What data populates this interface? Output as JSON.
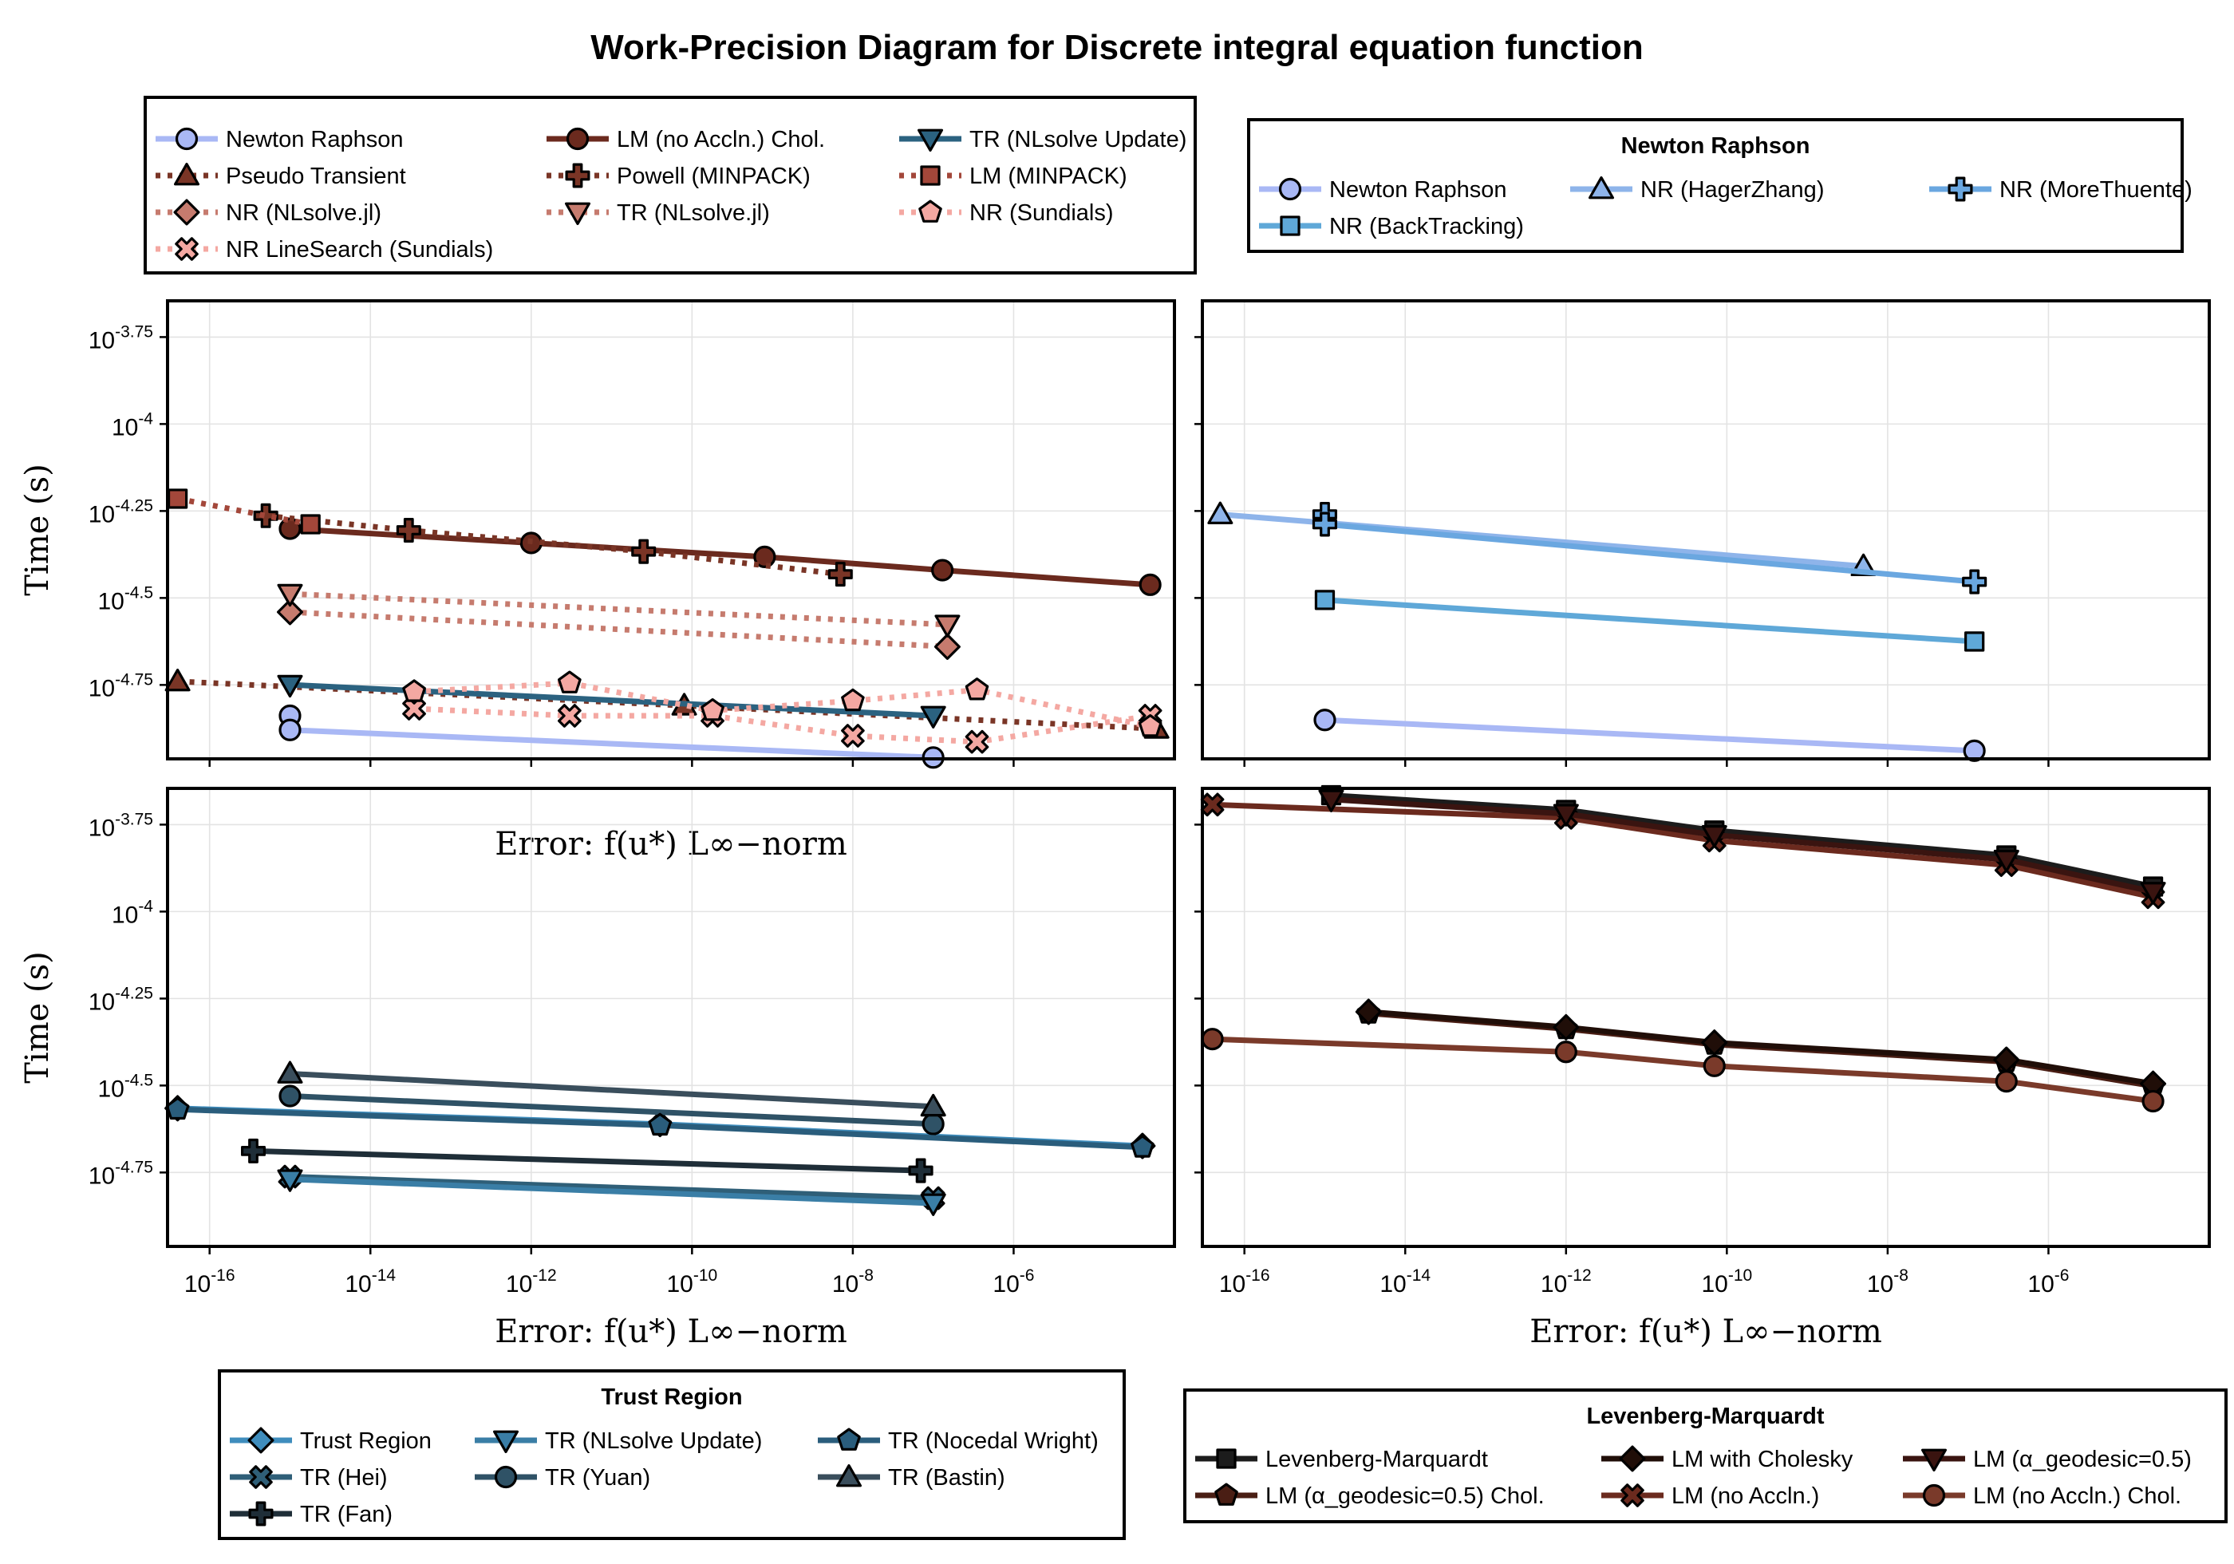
{
  "title": "Work-Precision Diagram for Discrete integral equation function",
  "chart_data": [
    {
      "type": "line",
      "panel": "top-left",
      "xscale": "log10",
      "yscale": "log10",
      "xlabel": "Error: f(u*) L∞−norm",
      "ylabel": "Time (s)",
      "xlim": [
        3e-17,
        0.0001
      ],
      "ylim": [
        1.09e-05,
        0.000226
      ],
      "x_ticks": [
        1e-16,
        1e-14,
        1e-12,
        1e-10,
        1e-08,
        1e-06
      ],
      "x_tick_labels": [
        "10^-16",
        "10^-14",
        "10^-12",
        "10^-10",
        "10^-8",
        "10^-6"
      ],
      "y_ticks": [
        0.0001778,
        0.0001,
        5.623e-05,
        3.162e-05,
        1.778e-05
      ],
      "y_tick_labels": [
        "10^-3.75",
        "10^-4",
        "10^-4.25",
        "10^-4.5",
        "10^-4.75"
      ],
      "show_x_tick_labels": false,
      "show_y_tick_labels": true,
      "grid": true,
      "series": [
        {
          "name": "Newton Raphson",
          "color": "#a9b8f5",
          "dash": "solid",
          "marker": "circle",
          "x": [
            1e-15,
            1e-15,
            1e-07
          ],
          "y": [
            1.45e-05,
            1.32e-05,
            1.1e-05
          ]
        },
        {
          "name": "Pseudo Transient",
          "color": "#7a3526",
          "dash": "dot",
          "marker": "triangle-up",
          "x": [
            4e-17,
            8e-11,
            6e-05
          ],
          "y": [
            1.82e-05,
            1.55e-05,
            1.33e-05
          ]
        },
        {
          "name": "NR (NLsolve.jl)",
          "color": "#c67b6e",
          "dash": "dot",
          "marker": "diamond",
          "x": [
            1e-15,
            1.5e-07
          ],
          "y": [
            2.88e-05,
            2.29e-05
          ]
        },
        {
          "name": "NR LineSearch (Sundials)",
          "color": "#f4a8a2",
          "dash": "dot",
          "marker": "cross-x",
          "x": [
            3.5e-14,
            3e-12,
            1.8e-10,
            1e-08,
            3.5e-07,
            5e-05
          ],
          "y": [
            1.52e-05,
            1.45e-05,
            1.45e-05,
            1.27e-05,
            1.22e-05,
            1.45e-05
          ]
        },
        {
          "name": "LM (no Accln.) Chol.",
          "color": "#6b2a1e",
          "dash": "solid",
          "marker": "circle",
          "x": [
            1e-15,
            1e-12,
            8e-10,
            1.3e-07,
            5e-05
          ],
          "y": [
            5e-05,
            4.55e-05,
            4.15e-05,
            3.8e-05,
            3.45e-05
          ]
        },
        {
          "name": "Powell (MINPACK)",
          "color": "#7a3526",
          "dash": "dot",
          "marker": "plus",
          "x": [
            5e-16,
            3e-14,
            2.5e-11,
            7e-09
          ],
          "y": [
            5.45e-05,
            4.95e-05,
            4.3e-05,
            3.7e-05
          ]
        },
        {
          "name": "TR (NLsolve.jl)",
          "color": "#c67b6e",
          "dash": "dot",
          "marker": "triangle-down",
          "x": [
            1e-15,
            1.5e-07
          ],
          "y": [
            3.25e-05,
            2.65e-05
          ]
        },
        {
          "name": "TR (NLsolve Update)",
          "color": "#2b6280",
          "dash": "solid",
          "marker": "triangle-down",
          "x": [
            1e-15,
            1e-07
          ],
          "y": [
            1.78e-05,
            1.45e-05
          ]
        },
        {
          "name": "LM (MINPACK)",
          "color": "#a3473a",
          "dash": "dot",
          "marker": "square",
          "x": [
            4e-17,
            1.8e-15
          ],
          "y": [
            6.1e-05,
            5.15e-05
          ]
        },
        {
          "name": "NR (Sundials)",
          "color": "#f4a8a2",
          "dash": "dot",
          "marker": "pentagon",
          "x": [
            3.5e-14,
            3e-12,
            1.8e-10,
            1e-08,
            3.5e-07,
            5e-05
          ],
          "y": [
            1.7e-05,
            1.8e-05,
            1.5e-05,
            1.6e-05,
            1.72e-05,
            1.35e-05
          ]
        }
      ]
    },
    {
      "type": "line",
      "panel": "top-right",
      "xscale": "log10",
      "yscale": "log10",
      "xlim": [
        3e-17,
        0.0001
      ],
      "ylim": [
        1.09e-05,
        0.000226
      ],
      "x_ticks": [
        1e-16,
        1e-14,
        1e-12,
        1e-10,
        1e-08,
        1e-06
      ],
      "x_tick_labels": [
        "10^-16",
        "10^-14",
        "10^-12",
        "10^-10",
        "10^-8",
        "10^-6"
      ],
      "y_ticks": [
        0.0001778,
        0.0001,
        5.623e-05,
        3.162e-05,
        1.778e-05
      ],
      "y_tick_labels": [
        "10^-3.75",
        "10^-4",
        "10^-4.25",
        "10^-4.5",
        "10^-4.75"
      ],
      "show_x_tick_labels": false,
      "show_y_tick_labels": false,
      "grid": true,
      "series": [
        {
          "name": "Newton Raphson",
          "color": "#a9b8f5",
          "dash": "solid",
          "marker": "circle",
          "x": [
            1e-15,
            1.2e-07
          ],
          "y": [
            1.41e-05,
            1.15e-05
          ]
        },
        {
          "name": "NR (HagerZhang)",
          "color": "#8eb4ea",
          "dash": "solid",
          "marker": "triangle-up",
          "x": [
            5e-17,
            5e-09
          ],
          "y": [
            5.5e-05,
            3.9e-05
          ]
        },
        {
          "name": "NR (MoreThuente)",
          "color": "#6aa7e0",
          "dash": "solid",
          "marker": "plus",
          "x": [
            1e-15,
            1e-15,
            1.2e-07
          ],
          "y": [
            5.5e-05,
            5.15e-05,
            3.52e-05
          ]
        },
        {
          "name": "NR (BackTracking)",
          "color": "#5fa8d8",
          "dash": "solid",
          "marker": "square",
          "x": [
            1e-15,
            1.2e-07
          ],
          "y": [
            3.12e-05,
            2.37e-05
          ]
        }
      ]
    },
    {
      "type": "line",
      "panel": "bottom-left",
      "xscale": "log10",
      "yscale": "log10",
      "xlabel": "Error: f(u*) L∞−norm",
      "ylabel": "Time (s)",
      "xlim": [
        3e-17,
        0.0001
      ],
      "ylim": [
        1.09e-05,
        0.000226
      ],
      "x_ticks": [
        1e-16,
        1e-14,
        1e-12,
        1e-10,
        1e-08,
        1e-06
      ],
      "x_tick_labels": [
        "10^-16",
        "10^-14",
        "10^-12",
        "10^-10",
        "10^-8",
        "10^-6"
      ],
      "y_ticks": [
        0.0001778,
        0.0001,
        5.623e-05,
        3.162e-05,
        1.778e-05
      ],
      "y_tick_labels": [
        "10^-3.75",
        "10^-4",
        "10^-4.25",
        "10^-4.5",
        "10^-4.75"
      ],
      "show_x_tick_labels": true,
      "show_y_tick_labels": true,
      "grid": true,
      "series": [
        {
          "name": "Trust Region",
          "color": "#3f8dbd",
          "dash": "solid",
          "marker": "diamond",
          "x": [
            4e-17,
            4e-11,
            4e-05
          ],
          "y": [
            2.72e-05,
            2.45e-05,
            2.12e-05
          ]
        },
        {
          "name": "TR (Hei)",
          "color": "#2f5f78",
          "dash": "solid",
          "marker": "cross-x",
          "x": [
            1e-15,
            1e-07
          ],
          "y": [
            1.73e-05,
            1.5e-05
          ]
        },
        {
          "name": "TR (Fan)",
          "color": "#1f2e38",
          "dash": "solid",
          "marker": "plus",
          "x": [
            3.5e-16,
            7e-08
          ],
          "y": [
            2.05e-05,
            1.8e-05
          ]
        },
        {
          "name": "TR (NLsolve Update)",
          "color": "#3a7ea6",
          "dash": "solid",
          "marker": "triangle-down",
          "x": [
            1e-15,
            1e-07
          ],
          "y": [
            1.7e-05,
            1.45e-05
          ]
        },
        {
          "name": "TR (Yuan)",
          "color": "#2f5266",
          "dash": "solid",
          "marker": "circle",
          "x": [
            1e-15,
            1e-07
          ],
          "y": [
            2.95e-05,
            2.45e-05
          ]
        },
        {
          "name": "TR (Nocedal Wright)",
          "color": "#2a5d7c",
          "dash": "solid",
          "marker": "pentagon",
          "x": [
            4e-17,
            4e-11,
            4e-05
          ],
          "y": [
            2.7e-05,
            2.43e-05,
            2.1e-05
          ]
        },
        {
          "name": "TR (Bastin)",
          "color": "#3a4e5c",
          "dash": "solid",
          "marker": "triangle-up",
          "x": [
            1e-15,
            1e-07
          ],
          "y": [
            3.42e-05,
            2.75e-05
          ]
        }
      ]
    },
    {
      "type": "line",
      "panel": "bottom-right",
      "xscale": "log10",
      "yscale": "log10",
      "xlabel": "Error: f(u*) L∞−norm",
      "xlim": [
        3e-17,
        0.0001
      ],
      "ylim": [
        1.09e-05,
        0.000226
      ],
      "x_ticks": [
        1e-16,
        1e-14,
        1e-12,
        1e-10,
        1e-08,
        1e-06
      ],
      "x_tick_labels": [
        "10^-16",
        "10^-14",
        "10^-12",
        "10^-10",
        "10^-8",
        "10^-6"
      ],
      "y_ticks": [
        0.0001778,
        0.0001,
        5.623e-05,
        3.162e-05,
        1.778e-05
      ],
      "y_tick_labels": [
        "10^-3.75",
        "10^-4",
        "10^-4.25",
        "10^-4.5",
        "10^-4.75"
      ],
      "show_x_tick_labels": true,
      "show_y_tick_labels": false,
      "grid": true,
      "series": [
        {
          "name": "Levenberg-Marquardt",
          "color": "#1c1c1c",
          "dash": "solid",
          "marker": "square",
          "x": [
            1.2e-15,
            1e-12,
            7e-11,
            3e-07,
            2e-05
          ],
          "y": [
            0.000216,
            0.000196,
            0.000171,
            0.000145,
            0.000118
          ]
        },
        {
          "name": "LM (α_geodesic=0.5) Chol.",
          "color": "#4a1e14",
          "dash": "solid",
          "marker": "pentagon",
          "x": [
            3.5e-15,
            1e-12,
            7e-11,
            3e-07,
            2e-05
          ],
          "y": [
            5.1e-05,
            4.6e-05,
            4.15e-05,
            3.7e-05,
            3.15e-05
          ]
        },
        {
          "name": "LM with Cholesky",
          "color": "#200e08",
          "dash": "solid",
          "marker": "diamond",
          "x": [
            3.5e-15,
            1e-12,
            7e-11,
            3e-07,
            2e-05
          ],
          "y": [
            5.15e-05,
            4.65e-05,
            4.2e-05,
            3.75e-05,
            3.2e-05
          ]
        },
        {
          "name": "LM (no Accln.)",
          "color": "#6b2a1e",
          "dash": "solid",
          "marker": "cross-x",
          "x": [
            4e-17,
            1e-12,
            7e-11,
            3e-07,
            2e-05
          ],
          "y": [
            0.000203,
            0.000186,
            0.00016,
            0.000136,
            0.00011
          ]
        },
        {
          "name": "LM (α_geodesic=0.5)",
          "color": "#3a1410",
          "dash": "solid",
          "marker": "triangle-down",
          "x": [
            1.2e-15,
            1e-12,
            7e-11,
            3e-07,
            2e-05
          ],
          "y": [
            0.00021,
            0.000191,
            0.000166,
            0.000141,
            0.000114
          ]
        },
        {
          "name": "LM (no Accln.) Chol.",
          "color": "#7a3a2a",
          "dash": "solid",
          "marker": "circle",
          "x": [
            4e-17,
            1e-12,
            7e-11,
            3e-07,
            2e-05
          ],
          "y": [
            4.3e-05,
            3.95e-05,
            3.6e-05,
            3.25e-05,
            2.85e-05
          ]
        }
      ]
    }
  ],
  "legends": [
    {
      "id": "legend-all",
      "title": "",
      "columns": 3,
      "entries": [
        {
          "label": "Newton Raphson",
          "color": "#a9b8f5",
          "dash": "solid",
          "marker": "circle"
        },
        {
          "label": "LM (no Accln.) Chol.",
          "color": "#6b2a1e",
          "dash": "solid",
          "marker": "circle"
        },
        {
          "label": "TR (NLsolve Update)",
          "color": "#2b6280",
          "dash": "solid",
          "marker": "triangle-down"
        },
        {
          "label": "Pseudo Transient",
          "color": "#7a3526",
          "dash": "dot",
          "marker": "triangle-up"
        },
        {
          "label": "Powell (MINPACK)",
          "color": "#7a3526",
          "dash": "dot",
          "marker": "plus"
        },
        {
          "label": "LM (MINPACK)",
          "color": "#a3473a",
          "dash": "dot",
          "marker": "square"
        },
        {
          "label": "NR (NLsolve.jl)",
          "color": "#c67b6e",
          "dash": "dot",
          "marker": "diamond"
        },
        {
          "label": "TR (NLsolve.jl)",
          "color": "#c67b6e",
          "dash": "dot",
          "marker": "triangle-down"
        },
        {
          "label": "NR (Sundials)",
          "color": "#f4a8a2",
          "dash": "dot",
          "marker": "pentagon"
        },
        {
          "label": "NR LineSearch (Sundials)",
          "color": "#f4a8a2",
          "dash": "dot",
          "marker": "cross-x"
        }
      ]
    },
    {
      "id": "legend-newton",
      "title": "Newton Raphson",
      "columns": 3,
      "entries": [
        {
          "label": "Newton Raphson",
          "color": "#a9b8f5",
          "dash": "solid",
          "marker": "circle"
        },
        {
          "label": "NR (HagerZhang)",
          "color": "#8eb4ea",
          "dash": "solid",
          "marker": "triangle-up"
        },
        {
          "label": "NR (MoreThuente)",
          "color": "#6aa7e0",
          "dash": "solid",
          "marker": "plus"
        },
        {
          "label": "NR (BackTracking)",
          "color": "#5fa8d8",
          "dash": "solid",
          "marker": "square"
        }
      ]
    },
    {
      "id": "legend-trust",
      "title": "Trust Region",
      "columns": 3,
      "entries": [
        {
          "label": "Trust Region",
          "color": "#3f8dbd",
          "dash": "solid",
          "marker": "diamond"
        },
        {
          "label": "TR (NLsolve Update)",
          "color": "#3a7ea6",
          "dash": "solid",
          "marker": "triangle-down"
        },
        {
          "label": "TR (Nocedal Wright)",
          "color": "#2a5d7c",
          "dash": "solid",
          "marker": "pentagon"
        },
        {
          "label": "TR (Hei)",
          "color": "#2f5f78",
          "dash": "solid",
          "marker": "cross-x"
        },
        {
          "label": "TR (Yuan)",
          "color": "#2f5266",
          "dash": "solid",
          "marker": "circle"
        },
        {
          "label": "TR (Bastin)",
          "color": "#3a4e5c",
          "dash": "solid",
          "marker": "triangle-up"
        },
        {
          "label": "TR (Fan)",
          "color": "#1f2e38",
          "dash": "solid",
          "marker": "plus"
        }
      ]
    },
    {
      "id": "legend-lm",
      "title": "Levenberg-Marquardt",
      "columns": 3,
      "entries": [
        {
          "label": "Levenberg-Marquardt",
          "color": "#1c1c1c",
          "dash": "solid",
          "marker": "square"
        },
        {
          "label": "LM with Cholesky",
          "color": "#200e08",
          "dash": "solid",
          "marker": "diamond"
        },
        {
          "label": "LM (α_geodesic=0.5)",
          "color": "#3a1410",
          "dash": "solid",
          "marker": "triangle-down"
        },
        {
          "label": "LM (α_geodesic=0.5) Chol.",
          "color": "#4a1e14",
          "dash": "solid",
          "marker": "pentagon"
        },
        {
          "label": "LM (no Accln.)",
          "color": "#6b2a1e",
          "dash": "solid",
          "marker": "cross-x"
        },
        {
          "label": "LM (no Accln.) Chol.",
          "color": "#7a3a2a",
          "dash": "solid",
          "marker": "circle"
        }
      ]
    }
  ]
}
